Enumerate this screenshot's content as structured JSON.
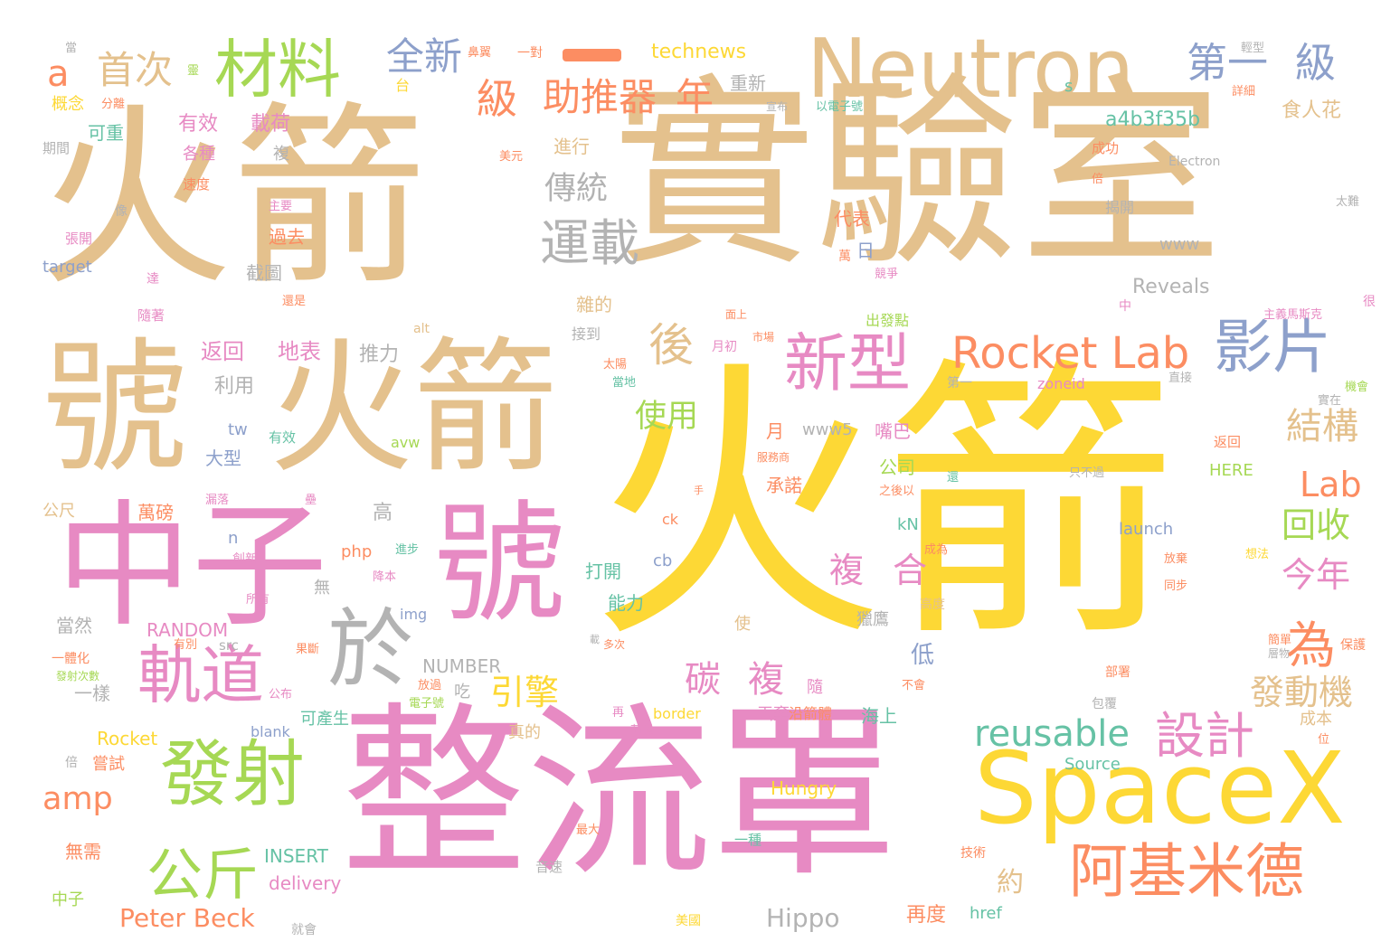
{
  "palette": {
    "gold": "#e4c18d",
    "yellow": "#fdd835",
    "pink": "#e78ac3",
    "green": "#a6d854",
    "orange": "#fc8d62",
    "blue": "#8da0cb",
    "teal": "#66c2a5",
    "gray": "#b3b3b3"
  },
  "words": {
    "w1": "火箭",
    "w2": "實驗室",
    "w3": "火箭",
    "w4": "號",
    "w5": "火箭",
    "w6": "中子",
    "w7": "號",
    "w8": "整流罩",
    "w9": "SpaceX",
    "w10": "Neutron",
    "w11": "材料",
    "w12": "於",
    "w13": "新型",
    "w14": "發射",
    "w15": "軌道",
    "w16": "阿基米德",
    "w17": "Rocket Lab",
    "w18": "影片",
    "w19": "運載",
    "w20": "後",
    "w21": "公斤",
    "w22": "設計",
    "w23": "全新",
    "w24": "第一",
    "w25": "級",
    "w26": "級",
    "w27": "助推器",
    "w28": "年",
    "w29": "首次",
    "w30": "a",
    "w31": "為",
    "w32": "reusable",
    "w33": "碳",
    "w34": "複",
    "w35": "複",
    "w36": "合",
    "w37": "結構",
    "w38": "Lab",
    "w39": "回收",
    "w40": "今年",
    "w41": "發動機",
    "w42": "引擎",
    "w43": "傳統",
    "w44": "使用",
    "w45": "amp",
    "w46": "約",
    "w47": "有效",
    "w48": "載荷",
    "w49": "返回",
    "w50": "地表",
    "w51": "推力",
    "w52": "利用",
    "w53": "Peter Beck",
    "w54": "Hippo",
    "w55": "再度",
    "w56": "technews",
    "w57": "重新",
    "w58": "a4b3f35b",
    "w59": "食人花",
    "w60": "成功",
    "w61": "Electron",
    "w62": "各種",
    "w63": "可重",
    "w64": "速度",
    "w65": "進行",
    "w66": "過去",
    "w67": "代表",
    "w68": "截圖",
    "w69": "Reveals",
    "w70": "www",
    "w71": "日",
    "w72": "雜的",
    "w73": "出發點",
    "w74": "接到",
    "w75": "月初",
    "w76": "zoneid",
    "w77": "www5",
    "w78": "嘴巴",
    "w79": "月",
    "w80": "大型",
    "w81": "tw",
    "w82": "公司",
    "w83": "承諾",
    "w84": "HERE",
    "w85": "高",
    "w86": "萬磅",
    "w87": "打開",
    "w88": "能力",
    "w89": "launch",
    "w90": "kN",
    "w91": "cb",
    "w92": "ck",
    "w93": "php",
    "w94": "img",
    "w95": "RANDOM",
    "w96": "無",
    "w97": "獵鷹",
    "w98": "低",
    "w99": "使",
    "w100": "NUMBER",
    "w101": "一樣",
    "w102": "當然",
    "w103": "吃",
    "w104": "隨",
    "w105": "海上",
    "w106": "可產生",
    "w107": "真的",
    "w108": "丟棄",
    "w109": "沿箭體",
    "w110": "成本",
    "w111": "border",
    "w112": "blank",
    "w113": "Rocket",
    "w114": "嘗試",
    "w115": "Source",
    "w116": "Hungry",
    "w117": "INSERT",
    "w118": "delivery",
    "w119": "中子",
    "w120": "無需",
    "w121": "一種",
    "w122": "技術",
    "w123": "就會",
    "w124": "音速",
    "w125": "href",
    "w126": "美國",
    "w127": "最大",
    "w128": "target",
    "w129": "張開",
    "w130": "隨著",
    "w131": "期間",
    "w132": "概念",
    "w133": "分離",
    "w134": "美元",
    "w135": "主要",
    "w136": "像",
    "w137": "達",
    "w138": "還是",
    "w139": "alt",
    "w140": "有效",
    "w141": "avw",
    "w142": "公尺",
    "w143": "漏落",
    "w144": "壘",
    "w145": "創新",
    "w146": "n",
    "w147": "進步",
    "w148": "降本",
    "w149": "所有",
    "w150": "src",
    "w151": "有別",
    "w152": "一體化",
    "w153": "發射次數",
    "w154": "公布",
    "w155": "放過",
    "w156": "電子號",
    "w157": "荷過",
    "w158": "再",
    "w159": "保護",
    "w160": "部署",
    "w161": "包覆",
    "w162": "不會",
    "w163": "位",
    "w164": "簡單",
    "w165": "層物",
    "w166": "放棄",
    "w167": "同步",
    "w168": "想法",
    "w169": "高度",
    "w170": "成為",
    "w171": "只不過",
    "w172": "還",
    "w173": "之後以",
    "w174": "機會",
    "w175": "實在",
    "w176": "直接",
    "w177": "很",
    "w178": "主義馬斯克",
    "w179": "競爭",
    "w180": "萬",
    "w181": "太陽",
    "w182": "當地",
    "w183": "市場",
    "w184": "面上",
    "w185": "揭開",
    "w186": "詳細",
    "w187": "輕型",
    "w188": "以電子號",
    "w189": "宣布",
    "w190": "鼻翼",
    "w191": "一對",
    "w192": "台",
    "w193": "s",
    "w194": "服務商",
    "w195": "手",
    "w196": "太難",
    "w197": "第一",
    "w198": "中",
    "w199": "返回",
    "w200": "多次",
    "w201": "載",
    "w202": "倍",
    "w203": "當",
    "w204": "靈",
    "w205": "複",
    "w206": "倍",
    "w207": "果斷"
  }
}
